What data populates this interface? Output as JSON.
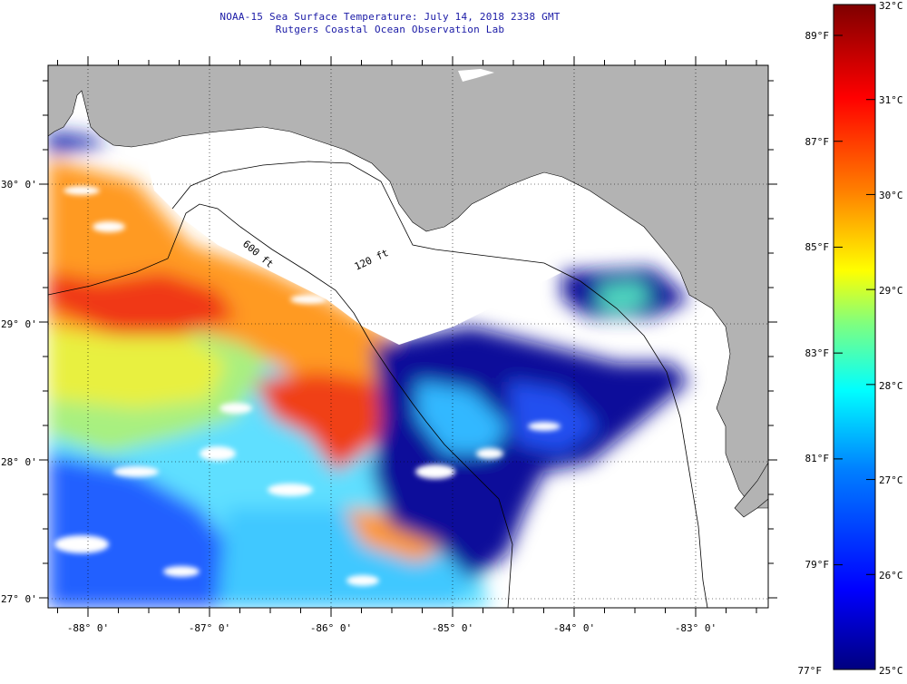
{
  "title": {
    "line1": "NOAA-15 Sea Surface Temperature:  July 14, 2018 2338 GMT",
    "line2": "Rutgers Coastal Ocean Observation Lab"
  },
  "colors": {
    "land": "#b3b3b3",
    "no_data": "#ffffff",
    "title_text": "#1a1aa6",
    "colormap": [
      "#00007f",
      "#0000ff",
      "#007fff",
      "#00ffff",
      "#7fff7f",
      "#ffff00",
      "#ff7f00",
      "#ff0000",
      "#7f0000"
    ]
  },
  "map": {
    "lon_labels": [
      "-88° 0'",
      "-87° 0'",
      "-86° 0'",
      "-85° 0'",
      "-84° 0'",
      "-83° 0'"
    ],
    "lat_labels": [
      "30° 0'",
      "29° 0'",
      "28° 0'",
      "27° 0'"
    ],
    "isobath_labels": [
      "600 ft",
      "120 ft"
    ]
  },
  "colorbar": {
    "celsius_labels": [
      "32°C",
      "31°C",
      "30°C",
      "29°C",
      "28°C",
      "27°C",
      "26°C",
      "25°C"
    ],
    "fahrenheit_labels": [
      "89°F",
      "87°F",
      "85°F",
      "83°F",
      "81°F",
      "79°F",
      "77°F"
    ]
  }
}
